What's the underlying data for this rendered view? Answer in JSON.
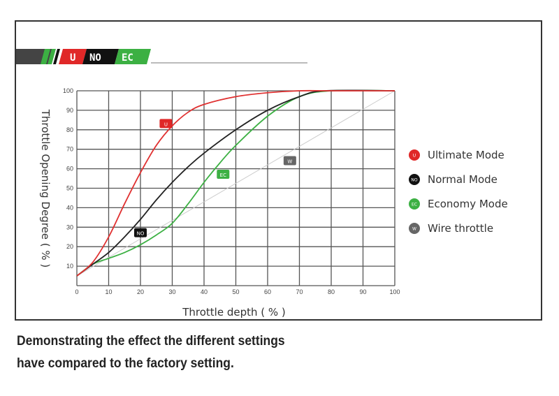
{
  "banner": {
    "labels": [
      "U",
      "NO",
      "EC"
    ]
  },
  "caption": {
    "line1": "Demonstrating the effect the different settings",
    "line2": "have compared to the factory setting."
  },
  "chart_data": {
    "type": "line",
    "xlabel": "Throttle depth ( % )",
    "ylabel": "Throttle Opening Degree ( % )",
    "xlim": [
      0,
      100
    ],
    "ylim": [
      0,
      100
    ],
    "xticks": [
      0,
      10,
      20,
      30,
      40,
      50,
      60,
      70,
      80,
      90,
      100
    ],
    "yticks": [
      10,
      20,
      30,
      40,
      50,
      60,
      70,
      80,
      90,
      100
    ],
    "grid": true,
    "legend_position": "right",
    "series": [
      {
        "name": "Ultimate Mode",
        "tag": "U",
        "color": "#e03030",
        "x": [
          0,
          5,
          10,
          15,
          20,
          25,
          30,
          35,
          40,
          50,
          60,
          70,
          80,
          100
        ],
        "y": [
          5,
          12,
          25,
          42,
          58,
          72,
          82,
          89,
          93,
          97,
          99,
          100,
          100,
          100
        ],
        "label_at": [
          28,
          83
        ]
      },
      {
        "name": "Normal Mode",
        "tag": "NO",
        "color": "#222222",
        "x": [
          0,
          5,
          10,
          15,
          20,
          25,
          30,
          35,
          40,
          50,
          60,
          70,
          78,
          100
        ],
        "y": [
          5,
          11,
          17,
          25,
          34,
          44,
          53,
          61,
          68,
          80,
          90,
          97,
          100,
          100
        ],
        "label_at": [
          20,
          27
        ]
      },
      {
        "name": "Economy Mode",
        "tag": "EC",
        "color": "#3cb043",
        "x": [
          0,
          5,
          10,
          15,
          20,
          25,
          30,
          35,
          40,
          45,
          50,
          60,
          70,
          80,
          100
        ],
        "y": [
          5,
          11,
          14,
          17,
          21,
          26,
          32,
          42,
          53,
          63,
          72,
          87,
          97,
          100,
          100
        ],
        "label_at": [
          46,
          57
        ]
      },
      {
        "name": "Wire throttle",
        "tag": "W",
        "color": "#cccccc",
        "x": [
          0,
          100
        ],
        "y": [
          5,
          100
        ],
        "label_at": [
          67,
          64
        ]
      }
    ]
  }
}
